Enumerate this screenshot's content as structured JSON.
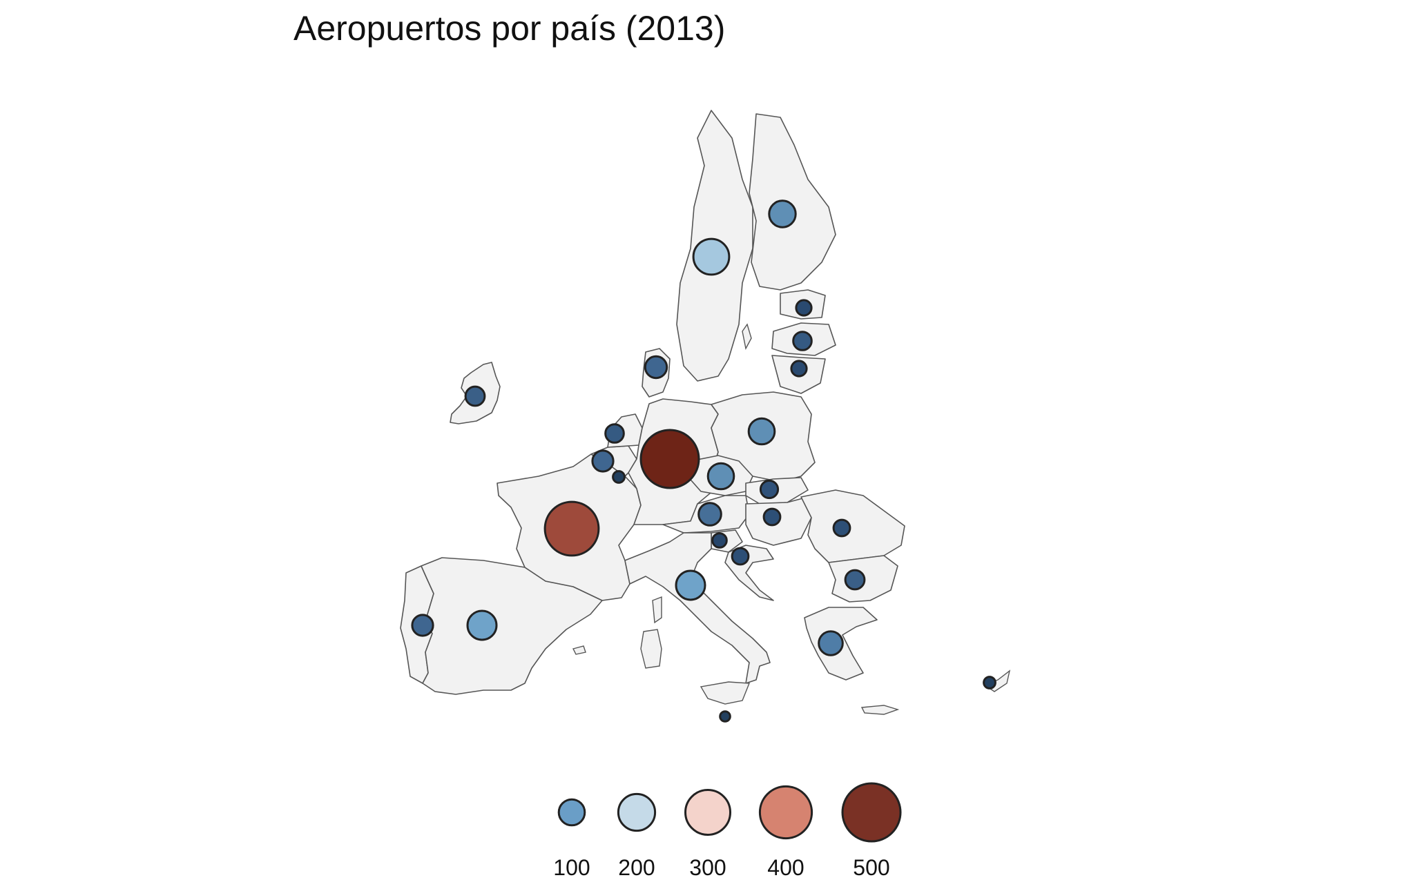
{
  "title": "Aeropuertos por país (2013)",
  "chart_data": {
    "type": "bubble-map",
    "title": "Aeropuertos por país (2013)",
    "region": "European Union",
    "size_variable": "airports",
    "points": [
      {
        "id": "germany",
        "value": 500,
        "color": "#6e2417"
      },
      {
        "id": "france",
        "value": 430,
        "color": "#9e4a3b"
      },
      {
        "id": "sweden",
        "value": 190,
        "color": "#a5c8df"
      },
      {
        "id": "italy",
        "value": 125,
        "color": "#6fa3c9"
      },
      {
        "id": "spain",
        "value": 125,
        "color": "#6fa3c9"
      },
      {
        "id": "finland",
        "value": 105,
        "color": "#5f8fb5"
      },
      {
        "id": "poland",
        "value": 100,
        "color": "#5f8fb5"
      },
      {
        "id": "czechia",
        "value": 100,
        "color": "#5f8fb5"
      },
      {
        "id": "greece",
        "value": 85,
        "color": "#4f7da7"
      },
      {
        "id": "austria",
        "value": 75,
        "color": "#466f98"
      },
      {
        "id": "denmark",
        "value": 70,
        "color": "#3f6690"
      },
      {
        "id": "belgium",
        "value": 65,
        "color": "#3f6690"
      },
      {
        "id": "portugal",
        "value": 65,
        "color": "#3f6690"
      },
      {
        "id": "ireland",
        "value": 55,
        "color": "#3a5f87"
      },
      {
        "id": "bulgaria",
        "value": 55,
        "color": "#3a5f87"
      },
      {
        "id": "netherlands",
        "value": 50,
        "color": "#355a82"
      },
      {
        "id": "latvia",
        "value": 50,
        "color": "#355a82"
      },
      {
        "id": "slovakia",
        "value": 45,
        "color": "#30527a"
      },
      {
        "id": "hungary",
        "value": 40,
        "color": "#2d4f76"
      },
      {
        "id": "romania",
        "value": 40,
        "color": "#2d4f76"
      },
      {
        "id": "croatia",
        "value": 40,
        "color": "#2d4f76"
      },
      {
        "id": "estonia",
        "value": 35,
        "color": "#2a4a70"
      },
      {
        "id": "lithuania",
        "value": 35,
        "color": "#2a4a70"
      },
      {
        "id": "slovenia",
        "value": 30,
        "color": "#27466b"
      },
      {
        "id": "luxembourg",
        "value": 20,
        "color": "#23405f"
      },
      {
        "id": "cyprus",
        "value": 20,
        "color": "#23405f"
      },
      {
        "id": "malta",
        "value": 15,
        "color": "#23405f"
      }
    ],
    "legend": [
      {
        "label": "100",
        "value": 100,
        "color": "#6a9ec7"
      },
      {
        "label": "200",
        "value": 200,
        "color": "#c5dae8"
      },
      {
        "label": "300",
        "value": 300,
        "color": "#f4d3cb"
      },
      {
        "label": "400",
        "value": 400,
        "color": "#d68370"
      },
      {
        "label": "500",
        "value": 500,
        "color": "#7a3125"
      }
    ]
  }
}
